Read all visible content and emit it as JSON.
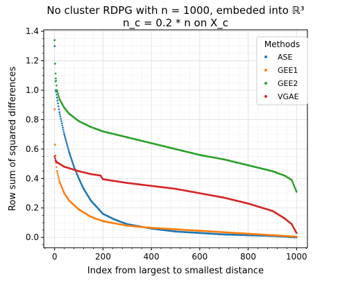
{
  "chart_data": {
    "type": "scatter",
    "title_line1": "No cluster RDPG with n = 1000, embeded into ℝ³",
    "title_line2": "n_c = 0.2 * n on X_c",
    "xlabel": "Index from largest to smallest distance",
    "ylabel": "Row sum of squared differences",
    "xlim": [
      -45,
      1045
    ],
    "ylim": [
      -0.07,
      1.41
    ],
    "xticks": [
      0,
      200,
      400,
      600,
      800,
      1000
    ],
    "yticks": [
      0.0,
      0.2,
      0.4,
      0.6,
      0.8,
      1.0,
      1.2,
      1.4
    ],
    "xtick_labels": [
      "0",
      "200",
      "400",
      "600",
      "800",
      "1000"
    ],
    "ytick_labels": [
      "0.0",
      "0.2",
      "0.4",
      "0.6",
      "0.8",
      "1.0",
      "1.2",
      "1.4"
    ],
    "grid": true,
    "minor_grid": true,
    "legend": {
      "title": "Methods",
      "position": "top-right"
    },
    "n_points": 1000,
    "series": [
      {
        "name": "ASE",
        "color": "#1f77b4",
        "x": [
          0,
          5,
          10,
          20,
          40,
          60,
          80,
          100,
          120,
          150,
          200,
          250,
          300,
          400,
          500,
          600,
          700,
          800,
          900,
          950,
          1000
        ],
        "y": [
          1.3,
          1.0,
          0.95,
          0.85,
          0.7,
          0.58,
          0.48,
          0.4,
          0.33,
          0.25,
          0.16,
          0.12,
          0.09,
          0.06,
          0.04,
          0.03,
          0.02,
          0.015,
          0.01,
          0.005,
          0.0
        ]
      },
      {
        "name": "GEE1",
        "color": "#ff7f0e",
        "x": [
          0,
          2,
          5,
          10,
          20,
          40,
          60,
          100,
          150,
          200,
          300,
          400,
          500,
          600,
          700,
          800,
          900,
          1000
        ],
        "y": [
          0.87,
          0.63,
          0.52,
          0.45,
          0.38,
          0.3,
          0.25,
          0.19,
          0.14,
          0.11,
          0.08,
          0.065,
          0.055,
          0.045,
          0.035,
          0.025,
          0.015,
          0.005
        ]
      },
      {
        "name": "GEE2",
        "color": "#2ca02c",
        "x": [
          0,
          2,
          5,
          10,
          20,
          40,
          60,
          100,
          150,
          200,
          300,
          400,
          500,
          600,
          700,
          800,
          900,
          950,
          980,
          1000
        ],
        "y": [
          1.34,
          1.18,
          1.08,
          1.0,
          0.94,
          0.88,
          0.84,
          0.79,
          0.75,
          0.72,
          0.68,
          0.64,
          0.6,
          0.56,
          0.53,
          0.49,
          0.45,
          0.42,
          0.39,
          0.31
        ]
      },
      {
        "name": "VGAE",
        "color": "#d62728",
        "x": [
          0,
          5,
          10,
          20,
          40,
          60,
          100,
          150,
          190,
          200,
          300,
          400,
          500,
          600,
          700,
          800,
          900,
          950,
          980,
          1000
        ],
        "y": [
          0.55,
          0.52,
          0.51,
          0.5,
          0.48,
          0.47,
          0.45,
          0.43,
          0.42,
          0.395,
          0.37,
          0.35,
          0.33,
          0.3,
          0.27,
          0.23,
          0.18,
          0.13,
          0.09,
          0.03
        ]
      }
    ]
  }
}
